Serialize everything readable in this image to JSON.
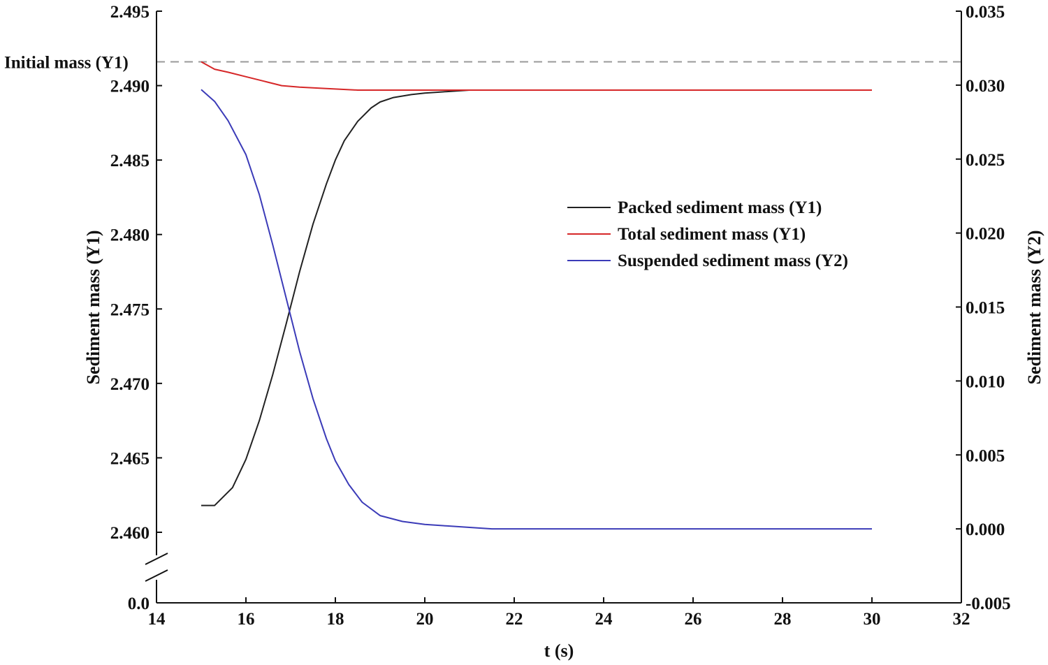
{
  "chart_data": {
    "type": "line",
    "xlabel": "t (s)",
    "ylabel_left": "Sediment mass (Y1)",
    "ylabel_right": "Sediment mass (Y2)",
    "xlim": [
      14,
      32
    ],
    "x_ticks": [
      "14",
      "16",
      "18",
      "20",
      "22",
      "24",
      "26",
      "28",
      "30",
      "32"
    ],
    "y1_ticks": [
      "2.460",
      "2.465",
      "2.470",
      "2.475",
      "2.480",
      "2.485",
      "2.490",
      "2.495"
    ],
    "y1_break_tick": "0.0",
    "y1_range": [
      2.46,
      2.495
    ],
    "y2_lim": [
      -0.005,
      0.035
    ],
    "y2_ticks": [
      "-0.005",
      "0.000",
      "0.005",
      "0.010",
      "0.015",
      "0.020",
      "0.025",
      "0.030",
      "0.035"
    ],
    "axis_break": "left y-axis between 0.0 and 2.460",
    "reference_line": {
      "label": "Initial mass (Y1)",
      "value": 2.4916,
      "style": "dashed",
      "color": "#999999"
    },
    "legend": {
      "placement": "center-right"
    },
    "series": [
      {
        "name": "Packed sediment mass (Y1)",
        "axis": "Y1",
        "color": "#222222",
        "x": [
          15.0,
          15.3,
          15.7,
          16.0,
          16.3,
          16.6,
          16.9,
          17.2,
          17.5,
          17.8,
          18.0,
          18.2,
          18.5,
          18.8,
          19.0,
          19.3,
          19.7,
          20.0,
          20.5,
          21.0
        ],
        "y": [
          2.4618,
          2.4618,
          2.463,
          2.4649,
          2.4675,
          2.4706,
          2.474,
          2.4775,
          2.4807,
          2.4834,
          2.485,
          2.4863,
          2.4876,
          2.4885,
          2.4889,
          2.4892,
          2.4894,
          2.4895,
          2.4896,
          2.4897
        ]
      },
      {
        "name": "Total sediment mass (Y1)",
        "axis": "Y1",
        "color": "#d62728",
        "x": [
          15.0,
          15.3,
          15.6,
          16.0,
          16.4,
          16.8,
          17.2,
          17.8,
          18.5,
          20.0,
          22.0,
          26.0,
          30.0
        ],
        "y": [
          2.4916,
          2.4911,
          2.4909,
          2.4906,
          2.4903,
          2.49,
          2.4899,
          2.4898,
          2.4897,
          2.4897,
          2.4897,
          2.4897,
          2.4897
        ]
      },
      {
        "name": "Suspended sediment mass (Y2)",
        "axis": "Y2",
        "color": "#3b3bb8",
        "x": [
          15.0,
          15.3,
          15.6,
          16.0,
          16.3,
          16.6,
          16.9,
          17.2,
          17.5,
          17.8,
          18.0,
          18.3,
          18.6,
          19.0,
          19.5,
          20.0,
          20.5,
          21.0,
          21.5,
          22.0,
          26.0,
          30.0
        ],
        "y": [
          0.0297,
          0.0289,
          0.0276,
          0.0253,
          0.0226,
          0.0192,
          0.0156,
          0.012,
          0.0088,
          0.0061,
          0.0046,
          0.003,
          0.0018,
          0.0009,
          0.0005,
          0.0003,
          0.0002,
          0.0001,
          0.0,
          0.0,
          0.0,
          0.0
        ]
      }
    ]
  }
}
